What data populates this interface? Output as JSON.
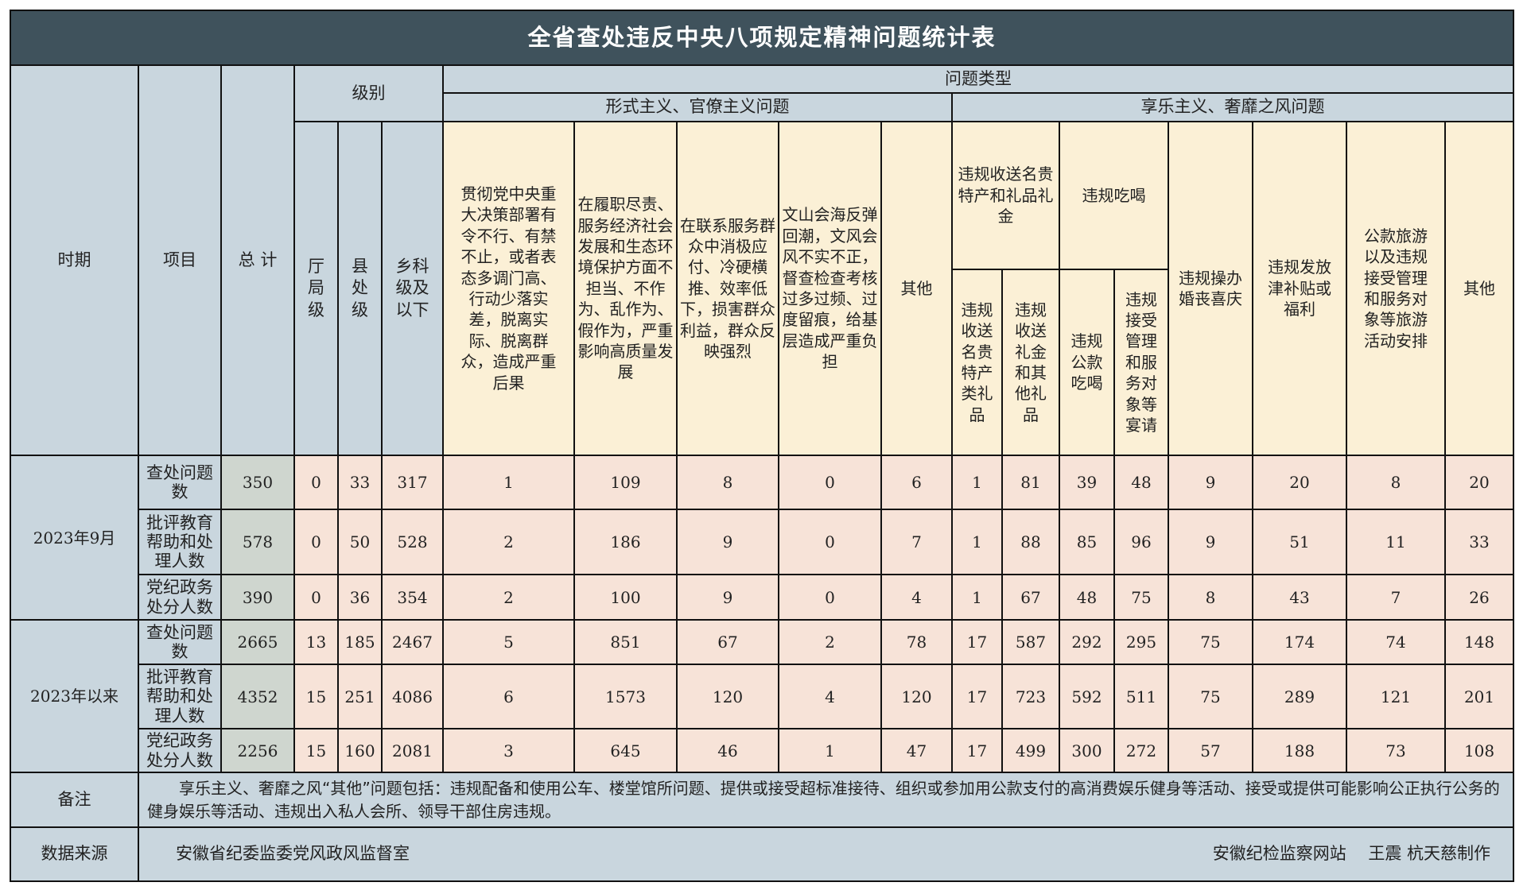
{
  "title": "全省查处违反中央八项规定精神问题统计表",
  "headers": {
    "period": "时期",
    "item": "项目",
    "total": "总 计",
    "level": "级别",
    "levels": [
      "厅局级",
      "县处级",
      "乡科级及以下"
    ],
    "problem_type": "问题类型",
    "formalism": "形式主义、官僚主义问题",
    "formalism_cols": [
      "贯彻党中央重大决策部署有令不行、有禁不止，或者表态多调门高、行动少落实差，脱离实际、脱离群众，造成严重后果",
      "在履职尽责、服务经济社会发展和生态环境保护方面不担当、不作为、乱作为、假作为，严重影响高质量发展",
      "在联系服务群众中消极应付、冷硬横推、效率低下，损害群众利益，群众反映强烈",
      "文山会海反弹回潮，文风会风不实不正，督查检查考核过多过频、过度留痕，给基层造成严重负担",
      "其他"
    ],
    "hedonism": "享乐主义、奢靡之风问题",
    "gifts": "违规收送名贵特产和礼品礼金",
    "gifts_sub": [
      "违规收送名贵特产类礼品",
      "违规收送礼金和其他礼品"
    ],
    "dining": "违规吃喝",
    "dining_sub": [
      "违规公款吃喝",
      "违规接受管理和服务对象等宴请"
    ],
    "hedonism_cols": [
      "违规操办婚丧喜庆",
      "违规发放津补贴或福利",
      "公款旅游以及违规接受管理和服务对象等旅游活动安排",
      "其他"
    ]
  },
  "periods": [
    {
      "label": "2023年9月",
      "rows": [
        {
          "item": "查处问题数",
          "values": [
            "350",
            "0",
            "33",
            "317",
            "1",
            "109",
            "8",
            "0",
            "6",
            "1",
            "81",
            "39",
            "48",
            "9",
            "20",
            "8",
            "20"
          ]
        },
        {
          "item": "批评教育帮助和处理人数",
          "values": [
            "578",
            "0",
            "50",
            "528",
            "2",
            "186",
            "9",
            "0",
            "7",
            "1",
            "88",
            "85",
            "96",
            "9",
            "51",
            "11",
            "33"
          ]
        },
        {
          "item": "党纪政务处分人数",
          "values": [
            "390",
            "0",
            "36",
            "354",
            "2",
            "100",
            "9",
            "0",
            "4",
            "1",
            "67",
            "48",
            "75",
            "8",
            "43",
            "7",
            "26"
          ]
        }
      ]
    },
    {
      "label": "2023年以来",
      "rows": [
        {
          "item": "查处问题数",
          "values": [
            "2665",
            "13",
            "185",
            "2467",
            "5",
            "851",
            "67",
            "2",
            "78",
            "17",
            "587",
            "292",
            "295",
            "75",
            "174",
            "74",
            "148"
          ]
        },
        {
          "item": "批评教育帮助和处理人数",
          "values": [
            "4352",
            "15",
            "251",
            "4086",
            "6",
            "1573",
            "120",
            "4",
            "120",
            "17",
            "723",
            "592",
            "511",
            "75",
            "289",
            "121",
            "201"
          ]
        },
        {
          "item": "党纪政务处分人数",
          "values": [
            "2256",
            "15",
            "160",
            "2081",
            "3",
            "645",
            "46",
            "1",
            "47",
            "17",
            "499",
            "300",
            "272",
            "57",
            "188",
            "73",
            "108"
          ]
        }
      ]
    }
  ],
  "remarks": {
    "label": "备注",
    "text": "　　享乐主义、奢靡之风“其他”问题包括：违规配备和使用公车、楼堂馆所问题、提供或接受超标准接待、组织或参加用公款支付的高消费娱乐健身等活动、接受或提供可能影响公正执行公务的健身娱乐等活动、违规出入私人会所、领导干部住房违规。"
  },
  "source": {
    "label": "数据来源",
    "value": "安徽省纪委监委党风政风监督室",
    "credit": "安徽纪检监察网站　 王震  杭天慈制作"
  },
  "colors": {
    "title_bg": "#3f525c",
    "header_bg": "#c9d6de",
    "column_header_bg": "#fbf0d6",
    "cell_bg": "#f7e3d8",
    "total_bg": "#cfd6cf"
  }
}
